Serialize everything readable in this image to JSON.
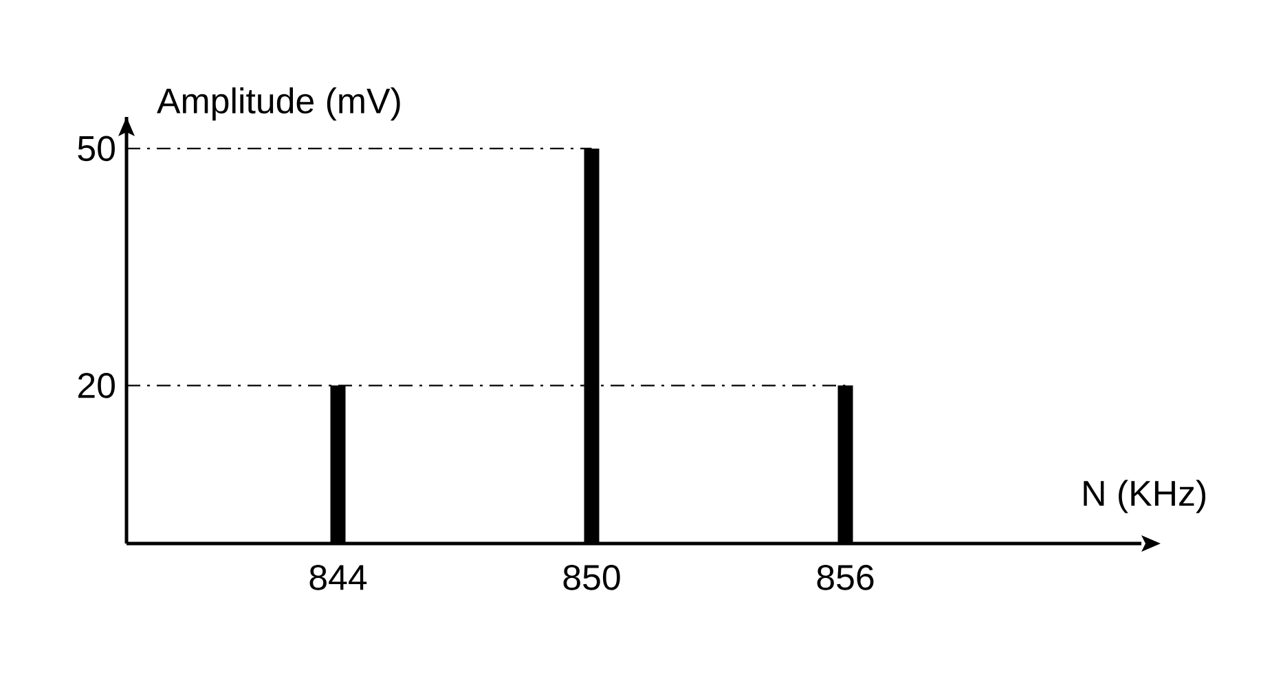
{
  "chart_data": {
    "type": "bar",
    "xlabel": "N (KHz)",
    "ylabel": "Amplitude (mV)",
    "x": [
      844,
      850,
      856
    ],
    "values": [
      20,
      50,
      20
    ],
    "color": "#000000",
    "xlim": [
      839,
      863
    ],
    "ylim": [
      0,
      54
    ],
    "xticks": [
      844,
      850,
      856
    ],
    "yticks": [
      20,
      50
    ],
    "ref_lines": [
      {
        "axis": "y",
        "value": 20,
        "line_style": "dashdot"
      },
      {
        "axis": "y",
        "value": 50,
        "line_style": "dashdot"
      }
    ]
  }
}
